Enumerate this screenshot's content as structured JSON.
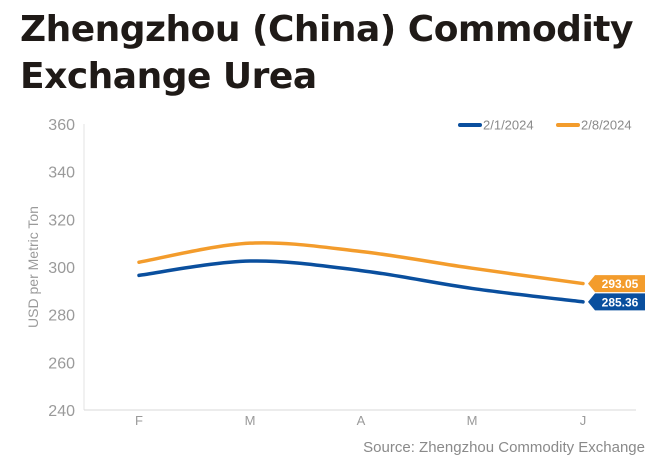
{
  "title": "Zhengzhou (China) Commodity Exchange Urea",
  "source": "Source: Zhengzhou Commodity Exchange",
  "chart_data": {
    "type": "line",
    "title": "Zhengzhou (China) Commodity Exchange Urea",
    "xlabel": "",
    "ylabel": "USD per Metric Ton",
    "categories": [
      "F",
      "M",
      "A",
      "M",
      "J"
    ],
    "ylim": [
      240,
      360
    ],
    "yticks": [
      240,
      260,
      280,
      300,
      320,
      340,
      360
    ],
    "grid": false,
    "legend": "top-right",
    "series": [
      {
        "name": "2/1/2024",
        "color": "#0a4f9e",
        "values": [
          296.5,
          302.5,
          298.5,
          291.0,
          285.36
        ],
        "end_label": "285.36"
      },
      {
        "name": "2/8/2024",
        "color": "#f39c2c",
        "values": [
          302.0,
          310.0,
          306.5,
          299.5,
          293.05
        ],
        "end_label": "293.05"
      }
    ]
  }
}
